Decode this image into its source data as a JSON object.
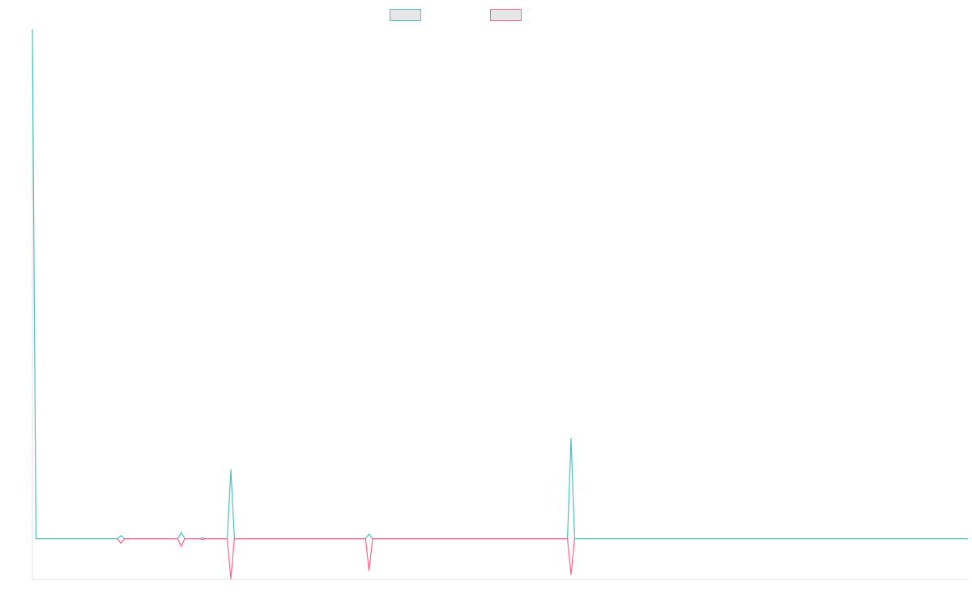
{
  "chart_data": {
    "type": "line",
    "title": "",
    "xlabel": "",
    "ylabel": "",
    "grid": false,
    "legend_position": "top-center",
    "ylim": [
      -52,
      650
    ],
    "series": [
      {
        "name": "",
        "color": "#4bc0c0",
        "points": [
          {
            "x": 0,
            "y": 650
          },
          {
            "x": 1,
            "y": 0
          },
          {
            "x": 24,
            "y": 0
          },
          {
            "x": 25,
            "y": 4
          },
          {
            "x": 26,
            "y": 0
          },
          {
            "x": 41,
            "y": 0
          },
          {
            "x": 42,
            "y": 8
          },
          {
            "x": 43,
            "y": 0
          },
          {
            "x": 47,
            "y": 0
          },
          {
            "x": 48,
            "y": 1
          },
          {
            "x": 49,
            "y": 0
          },
          {
            "x": 55,
            "y": 0
          },
          {
            "x": 56,
            "y": 88
          },
          {
            "x": 57,
            "y": 0
          },
          {
            "x": 94,
            "y": 0
          },
          {
            "x": 95,
            "y": 6
          },
          {
            "x": 96,
            "y": 0
          },
          {
            "x": 151,
            "y": 0
          },
          {
            "x": 152,
            "y": 128
          },
          {
            "x": 153,
            "y": 0
          },
          {
            "x": 264,
            "y": 0
          }
        ]
      },
      {
        "name": "",
        "color": "#ff6384",
        "points": [
          {
            "x": 24,
            "y": 0
          },
          {
            "x": 25,
            "y": -6
          },
          {
            "x": 26,
            "y": 0
          },
          {
            "x": 41,
            "y": 0
          },
          {
            "x": 42,
            "y": -10
          },
          {
            "x": 43,
            "y": 0
          },
          {
            "x": 47,
            "y": 0
          },
          {
            "x": 48,
            "y": -1
          },
          {
            "x": 49,
            "y": 0
          },
          {
            "x": 55,
            "y": 0
          },
          {
            "x": 56,
            "y": -51
          },
          {
            "x": 57,
            "y": 0
          },
          {
            "x": 94,
            "y": 0
          },
          {
            "x": 95,
            "y": -41
          },
          {
            "x": 96,
            "y": 0
          },
          {
            "x": 151,
            "y": 0
          },
          {
            "x": 152,
            "y": -46
          },
          {
            "x": 153,
            "y": 0
          }
        ]
      }
    ],
    "xlim": [
      0,
      264
    ]
  }
}
